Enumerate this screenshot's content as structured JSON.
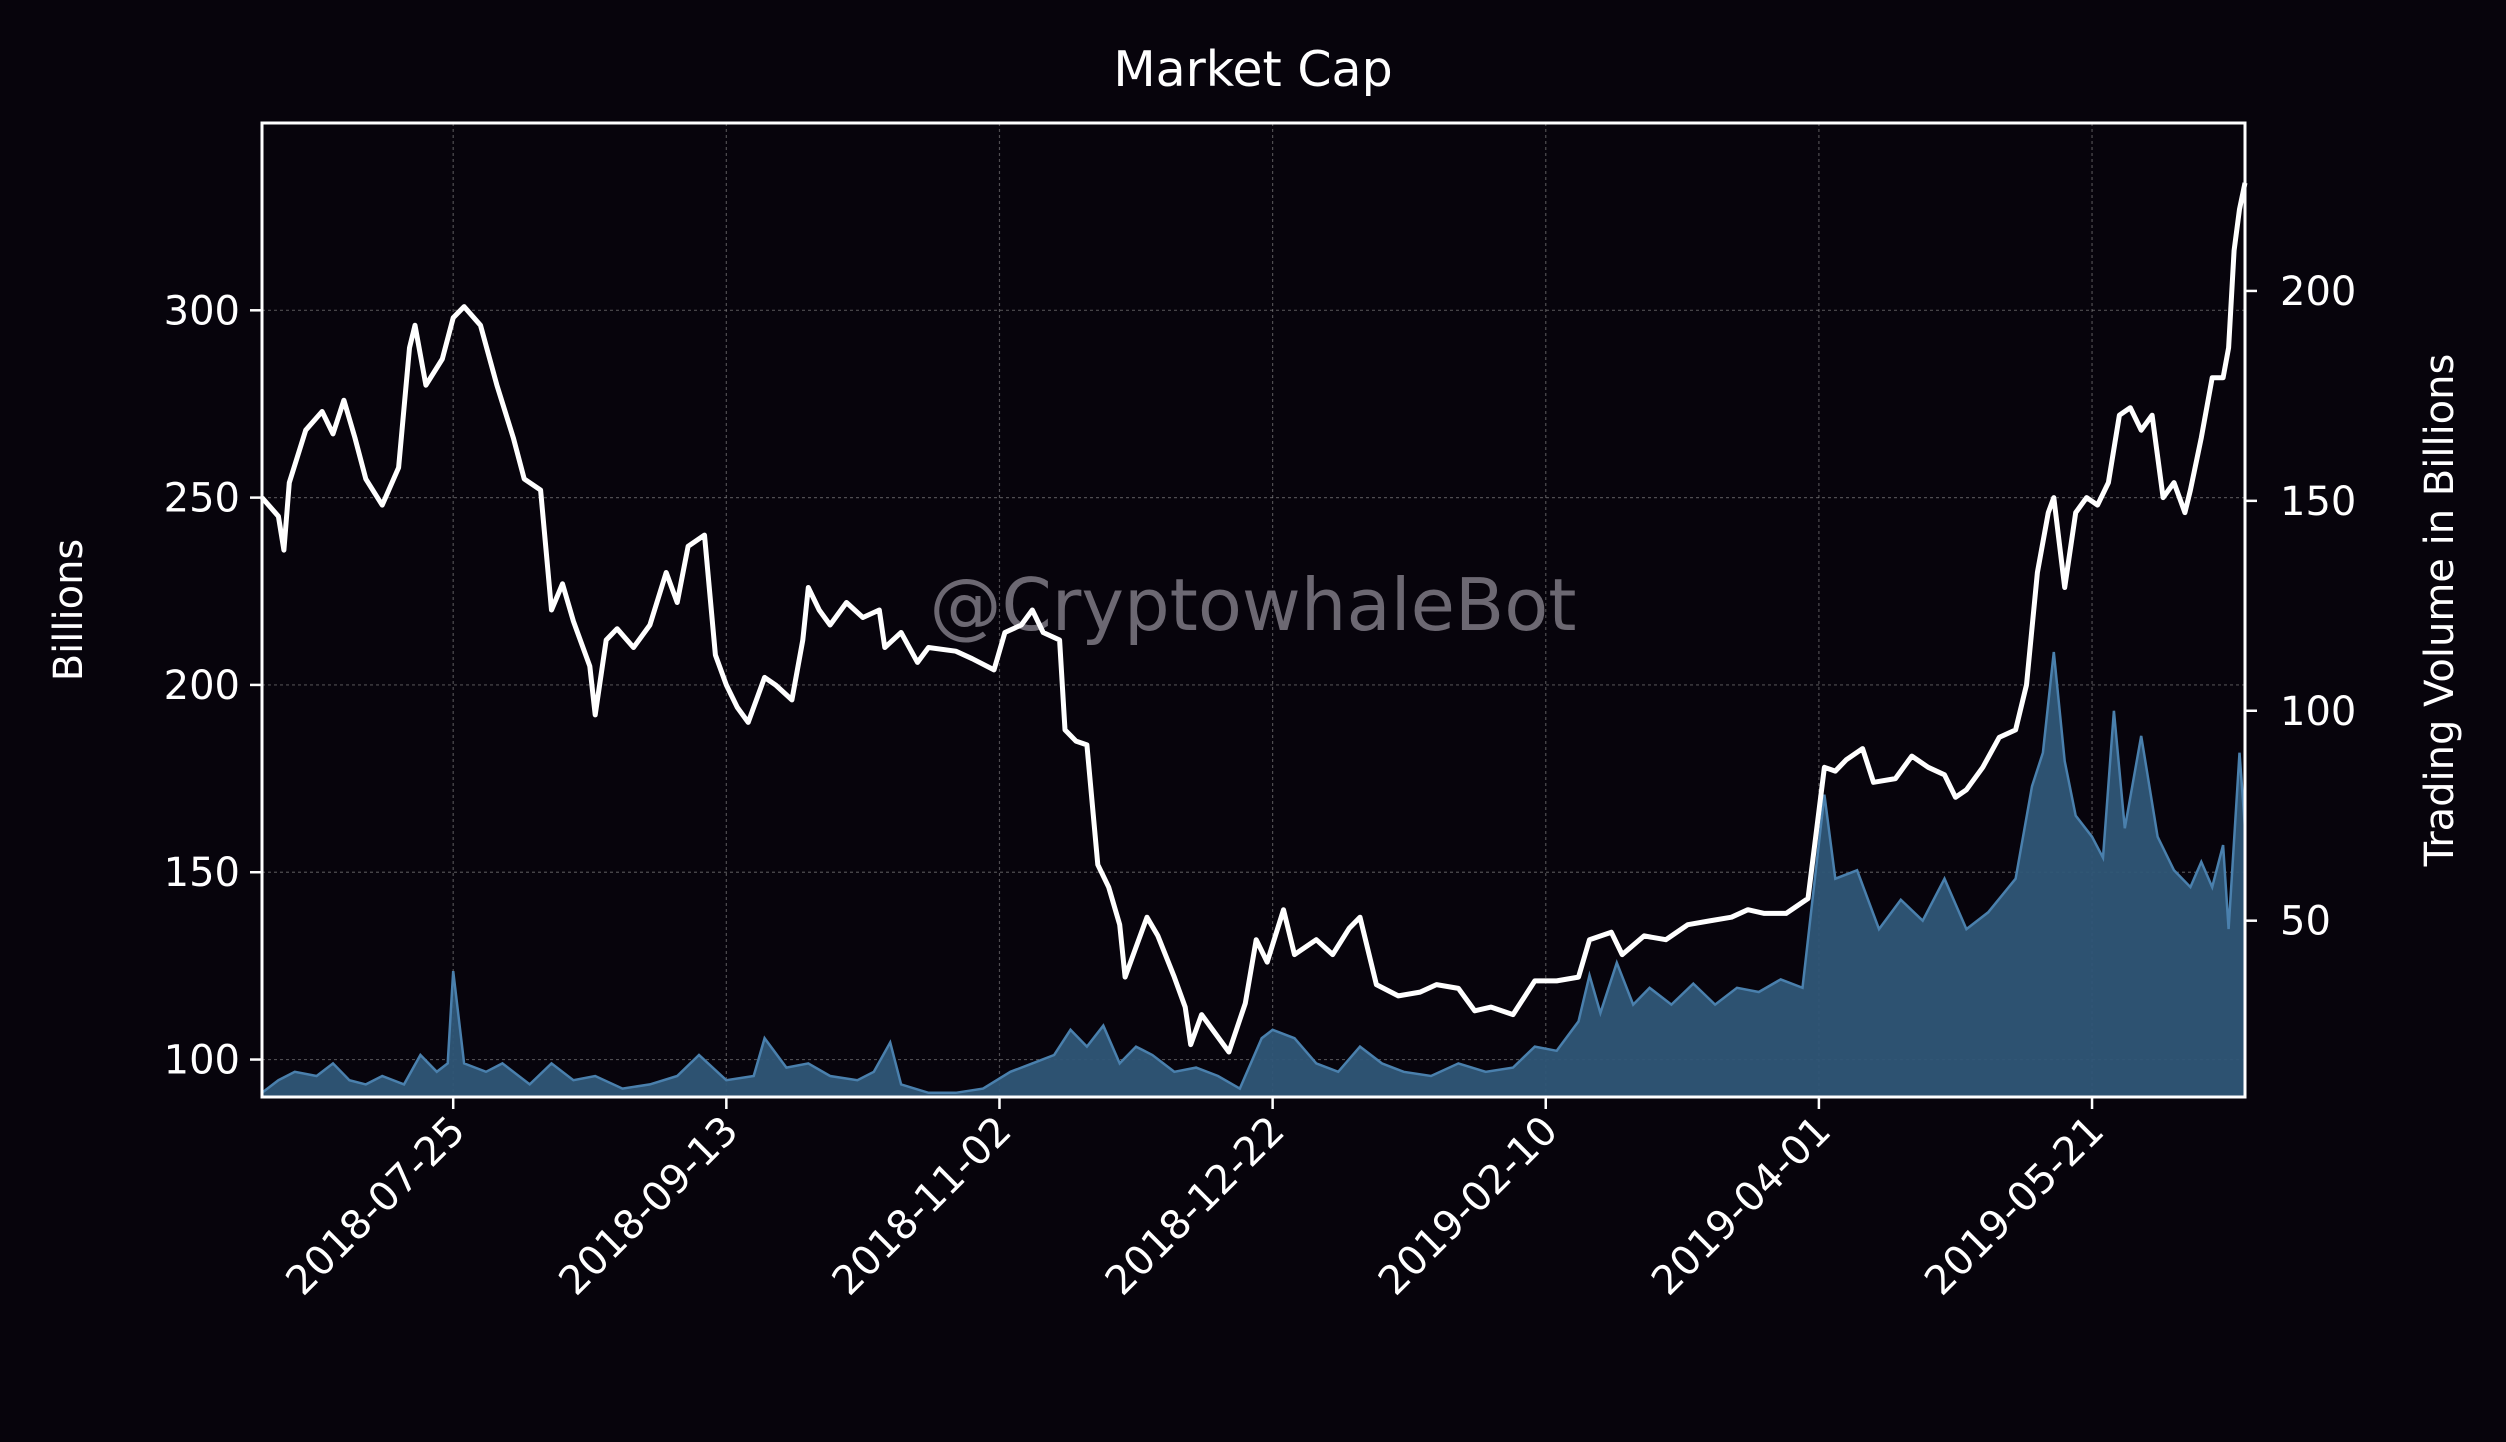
{
  "chart_data": {
    "type": "line",
    "title": "Market Cap",
    "watermark": "@CryptowhaleBot",
    "ylabel": "Billions",
    "ylabel_right": "Trading Volume in Billions",
    "xlim": [
      "2018-06-20",
      "2019-06-18"
    ],
    "ylim": [
      90,
      350
    ],
    "ylim_right": [
      8,
      240
    ],
    "x_ticks": [
      "2018-07-25",
      "2018-09-13",
      "2018-11-02",
      "2018-12-22",
      "2019-02-10",
      "2019-04-01",
      "2019-05-21"
    ],
    "y_ticks": [
      100,
      150,
      200,
      250,
      300
    ],
    "y_ticks_right": [
      50,
      100,
      150,
      200
    ],
    "grid": true,
    "colors": {
      "background": "#07040c",
      "market_cap_line": "#ffffff",
      "volume_fill": "#2f5677",
      "volume_edge": "#4a80ad"
    },
    "series": [
      {
        "name": "",
        "axis": "left",
        "style": "line",
        "points": [
          [
            "2018-06-20",
            250
          ],
          [
            "2018-06-23",
            245
          ],
          [
            "2018-06-24",
            236
          ],
          [
            "2018-06-25",
            254
          ],
          [
            "2018-06-28",
            268
          ],
          [
            "2018-07-01",
            273
          ],
          [
            "2018-07-03",
            267
          ],
          [
            "2018-07-05",
            276
          ],
          [
            "2018-07-07",
            266
          ],
          [
            "2018-07-09",
            255
          ],
          [
            "2018-07-12",
            248
          ],
          [
            "2018-07-15",
            258
          ],
          [
            "2018-07-17",
            290
          ],
          [
            "2018-07-18",
            296
          ],
          [
            "2018-07-20",
            280
          ],
          [
            "2018-07-23",
            287
          ],
          [
            "2018-07-25",
            298
          ],
          [
            "2018-07-27",
            301
          ],
          [
            "2018-07-30",
            296
          ],
          [
            "2018-08-02",
            280
          ],
          [
            "2018-08-05",
            266
          ],
          [
            "2018-08-07",
            255
          ],
          [
            "2018-08-10",
            252
          ],
          [
            "2018-08-12",
            220
          ],
          [
            "2018-08-14",
            227
          ],
          [
            "2018-08-16",
            217
          ],
          [
            "2018-08-19",
            205
          ],
          [
            "2018-08-20",
            192
          ],
          [
            "2018-08-22",
            212
          ],
          [
            "2018-08-24",
            215
          ],
          [
            "2018-08-27",
            210
          ],
          [
            "2018-08-30",
            216
          ],
          [
            "2018-09-02",
            230
          ],
          [
            "2018-09-04",
            222
          ],
          [
            "2018-09-06",
            237
          ],
          [
            "2018-09-09",
            240
          ],
          [
            "2018-09-11",
            208
          ],
          [
            "2018-09-13",
            200
          ],
          [
            "2018-09-15",
            194
          ],
          [
            "2018-09-17",
            190
          ],
          [
            "2018-09-20",
            202
          ],
          [
            "2018-09-22",
            200
          ],
          [
            "2018-09-25",
            196
          ],
          [
            "2018-09-27",
            212
          ],
          [
            "2018-09-28",
            226
          ],
          [
            "2018-09-30",
            220
          ],
          [
            "2018-10-02",
            216
          ],
          [
            "2018-10-05",
            222
          ],
          [
            "2018-10-08",
            218
          ],
          [
            "2018-10-11",
            220
          ],
          [
            "2018-10-12",
            210
          ],
          [
            "2018-10-15",
            214
          ],
          [
            "2018-10-18",
            206
          ],
          [
            "2018-10-20",
            210
          ],
          [
            "2018-10-25",
            209
          ],
          [
            "2018-10-28",
            207
          ],
          [
            "2018-11-01",
            204
          ],
          [
            "2018-11-03",
            214
          ],
          [
            "2018-11-06",
            216
          ],
          [
            "2018-11-08",
            220
          ],
          [
            "2018-11-10",
            214
          ],
          [
            "2018-11-13",
            212
          ],
          [
            "2018-11-14",
            188
          ],
          [
            "2018-11-16",
            185
          ],
          [
            "2018-11-18",
            184
          ],
          [
            "2018-11-20",
            152
          ],
          [
            "2018-11-22",
            146
          ],
          [
            "2018-11-24",
            136
          ],
          [
            "2018-11-25",
            122
          ],
          [
            "2018-11-27",
            130
          ],
          [
            "2018-11-29",
            138
          ],
          [
            "2018-12-01",
            133
          ],
          [
            "2018-12-04",
            122
          ],
          [
            "2018-12-06",
            114
          ],
          [
            "2018-12-07",
            104
          ],
          [
            "2018-12-09",
            112
          ],
          [
            "2018-12-11",
            108
          ],
          [
            "2018-12-14",
            102
          ],
          [
            "2018-12-17",
            115
          ],
          [
            "2018-12-19",
            132
          ],
          [
            "2018-12-21",
            126
          ],
          [
            "2018-12-24",
            140
          ],
          [
            "2018-12-26",
            128
          ],
          [
            "2018-12-30",
            132
          ],
          [
            "2019-01-02",
            128
          ],
          [
            "2019-01-05",
            135
          ],
          [
            "2019-01-07",
            138
          ],
          [
            "2019-01-10",
            120
          ],
          [
            "2019-01-14",
            117
          ],
          [
            "2019-01-18",
            118
          ],
          [
            "2019-01-21",
            120
          ],
          [
            "2019-01-25",
            119
          ],
          [
            "2019-01-28",
            113
          ],
          [
            "2019-01-31",
            114
          ],
          [
            "2019-02-04",
            112
          ],
          [
            "2019-02-08",
            121
          ],
          [
            "2019-02-12",
            121
          ],
          [
            "2019-02-16",
            122
          ],
          [
            "2019-02-18",
            132
          ],
          [
            "2019-02-22",
            134
          ],
          [
            "2019-02-24",
            128
          ],
          [
            "2019-02-28",
            133
          ],
          [
            "2019-03-04",
            132
          ],
          [
            "2019-03-08",
            136
          ],
          [
            "2019-03-12",
            137
          ],
          [
            "2019-03-16",
            138
          ],
          [
            "2019-03-19",
            140
          ],
          [
            "2019-03-22",
            139
          ],
          [
            "2019-03-26",
            139
          ],
          [
            "2019-03-30",
            143
          ],
          [
            "2019-04-02",
            178
          ],
          [
            "2019-04-04",
            177
          ],
          [
            "2019-04-06",
            180
          ],
          [
            "2019-04-09",
            183
          ],
          [
            "2019-04-11",
            174
          ],
          [
            "2019-04-15",
            175
          ],
          [
            "2019-04-18",
            181
          ],
          [
            "2019-04-21",
            178
          ],
          [
            "2019-04-24",
            176
          ],
          [
            "2019-04-26",
            170
          ],
          [
            "2019-04-28",
            172
          ],
          [
            "2019-05-01",
            178
          ],
          [
            "2019-05-04",
            186
          ],
          [
            "2019-05-07",
            188
          ],
          [
            "2019-05-09",
            200
          ],
          [
            "2019-05-11",
            230
          ],
          [
            "2019-05-13",
            246
          ],
          [
            "2019-05-14",
            250
          ],
          [
            "2019-05-16",
            226
          ],
          [
            "2019-05-18",
            246
          ],
          [
            "2019-05-20",
            250
          ],
          [
            "2019-05-22",
            248
          ],
          [
            "2019-05-24",
            254
          ],
          [
            "2019-05-26",
            272
          ],
          [
            "2019-05-28",
            274
          ],
          [
            "2019-05-30",
            268
          ],
          [
            "2019-06-01",
            272
          ],
          [
            "2019-06-03",
            250
          ],
          [
            "2019-06-05",
            254
          ],
          [
            "2019-06-07",
            246
          ],
          [
            "2019-06-08",
            252
          ],
          [
            "2019-06-10",
            266
          ],
          [
            "2019-06-12",
            282
          ],
          [
            "2019-06-14",
            282
          ],
          [
            "2019-06-15",
            290
          ],
          [
            "2019-06-16",
            316
          ],
          [
            "2019-06-17",
            327
          ],
          [
            "2019-06-18",
            334
          ]
        ]
      },
      {
        "name": "",
        "axis": "right",
        "style": "area",
        "points": [
          [
            "2018-06-20",
            9
          ],
          [
            "2018-06-23",
            12
          ],
          [
            "2018-06-26",
            14
          ],
          [
            "2018-06-30",
            13
          ],
          [
            "2018-07-03",
            16
          ],
          [
            "2018-07-06",
            12
          ],
          [
            "2018-07-09",
            11
          ],
          [
            "2018-07-12",
            13
          ],
          [
            "2018-07-16",
            11
          ],
          [
            "2018-07-19",
            18
          ],
          [
            "2018-07-22",
            14
          ],
          [
            "2018-07-24",
            16
          ],
          [
            "2018-07-25",
            38
          ],
          [
            "2018-07-27",
            16
          ],
          [
            "2018-07-31",
            14
          ],
          [
            "2018-08-03",
            16
          ],
          [
            "2018-08-08",
            11
          ],
          [
            "2018-08-12",
            16
          ],
          [
            "2018-08-16",
            12
          ],
          [
            "2018-08-20",
            13
          ],
          [
            "2018-08-25",
            10
          ],
          [
            "2018-08-30",
            11
          ],
          [
            "2018-09-04",
            13
          ],
          [
            "2018-09-08",
            18
          ],
          [
            "2018-09-13",
            12
          ],
          [
            "2018-09-18",
            13
          ],
          [
            "2018-09-20",
            22
          ],
          [
            "2018-09-24",
            15
          ],
          [
            "2018-09-28",
            16
          ],
          [
            "2018-10-02",
            13
          ],
          [
            "2018-10-07",
            12
          ],
          [
            "2018-10-10",
            14
          ],
          [
            "2018-10-13",
            21
          ],
          [
            "2018-10-15",
            11
          ],
          [
            "2018-10-20",
            9
          ],
          [
            "2018-10-25",
            9
          ],
          [
            "2018-10-30",
            10
          ],
          [
            "2018-11-04",
            14
          ],
          [
            "2018-11-08",
            16
          ],
          [
            "2018-11-12",
            18
          ],
          [
            "2018-11-15",
            24
          ],
          [
            "2018-11-18",
            20
          ],
          [
            "2018-11-21",
            25
          ],
          [
            "2018-11-24",
            16
          ],
          [
            "2018-11-27",
            20
          ],
          [
            "2018-11-30",
            18
          ],
          [
            "2018-12-04",
            14
          ],
          [
            "2018-12-08",
            15
          ],
          [
            "2018-12-12",
            13
          ],
          [
            "2018-12-16",
            10
          ],
          [
            "2018-12-20",
            22
          ],
          [
            "2018-12-22",
            24
          ],
          [
            "2018-12-26",
            22
          ],
          [
            "2018-12-30",
            16
          ],
          [
            "2019-01-03",
            14
          ],
          [
            "2019-01-07",
            20
          ],
          [
            "2019-01-11",
            16
          ],
          [
            "2019-01-15",
            14
          ],
          [
            "2019-01-20",
            13
          ],
          [
            "2019-01-25",
            16
          ],
          [
            "2019-01-30",
            14
          ],
          [
            "2019-02-04",
            15
          ],
          [
            "2019-02-08",
            20
          ],
          [
            "2019-02-12",
            19
          ],
          [
            "2019-02-16",
            26
          ],
          [
            "2019-02-18",
            37
          ],
          [
            "2019-02-20",
            28
          ],
          [
            "2019-02-23",
            40
          ],
          [
            "2019-02-26",
            30
          ],
          [
            "2019-03-01",
            34
          ],
          [
            "2019-03-05",
            30
          ],
          [
            "2019-03-09",
            35
          ],
          [
            "2019-03-13",
            30
          ],
          [
            "2019-03-17",
            34
          ],
          [
            "2019-03-21",
            33
          ],
          [
            "2019-03-25",
            36
          ],
          [
            "2019-03-29",
            34
          ],
          [
            "2019-04-02",
            80
          ],
          [
            "2019-04-04",
            60
          ],
          [
            "2019-04-08",
            62
          ],
          [
            "2019-04-12",
            48
          ],
          [
            "2019-04-16",
            55
          ],
          [
            "2019-04-20",
            50
          ],
          [
            "2019-04-24",
            60
          ],
          [
            "2019-04-28",
            48
          ],
          [
            "2019-05-02",
            52
          ],
          [
            "2019-05-07",
            60
          ],
          [
            "2019-05-10",
            82
          ],
          [
            "2019-05-12",
            90
          ],
          [
            "2019-05-14",
            114
          ],
          [
            "2019-05-16",
            88
          ],
          [
            "2019-05-18",
            75
          ],
          [
            "2019-05-21",
            70
          ],
          [
            "2019-05-23",
            65
          ],
          [
            "2019-05-25",
            100
          ],
          [
            "2019-05-27",
            72
          ],
          [
            "2019-05-30",
            94
          ],
          [
            "2019-06-02",
            70
          ],
          [
            "2019-06-05",
            62
          ],
          [
            "2019-06-08",
            58
          ],
          [
            "2019-06-10",
            64
          ],
          [
            "2019-06-12",
            58
          ],
          [
            "2019-06-14",
            68
          ],
          [
            "2019-06-15",
            48
          ],
          [
            "2019-06-17",
            90
          ],
          [
            "2019-06-18",
            72
          ]
        ]
      }
    ]
  }
}
